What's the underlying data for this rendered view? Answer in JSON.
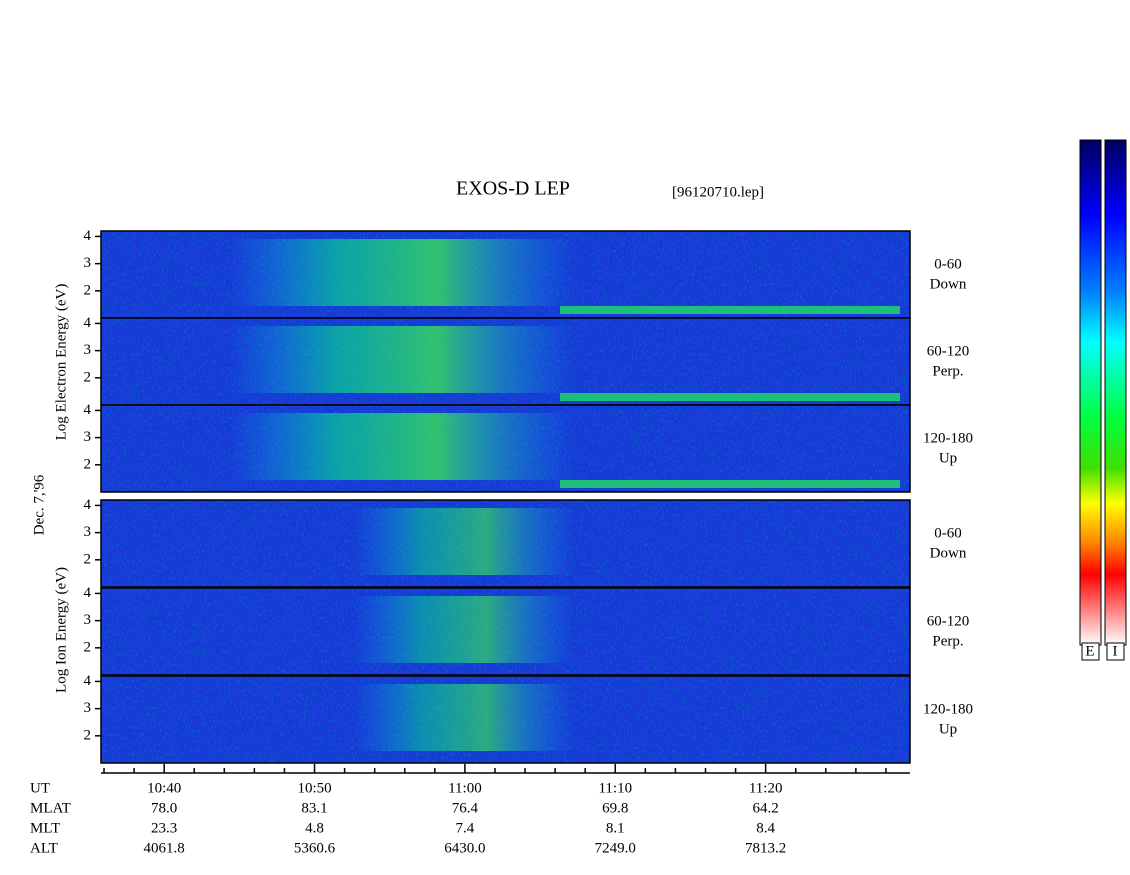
{
  "chart_data": {
    "type": "spectrogram",
    "title": "EXOS-D LEP",
    "file": "[96120710.lep]",
    "date_label": "Dec. 7,'96",
    "electron_ylabel": "Log Electron Energy (eV)",
    "ion_ylabel": "Log Ion Energy (eV)",
    "ylim": [
      1,
      4.2
    ],
    "yticks": [
      2,
      3,
      4
    ],
    "panels": [
      {
        "pitch_angle": "0-60",
        "direction": "Down"
      },
      {
        "pitch_angle": "60-120",
        "direction": "Perp."
      },
      {
        "pitch_angle": "120-180",
        "direction": "Up"
      },
      {
        "pitch_angle": "0-60",
        "direction": "Down"
      },
      {
        "pitch_angle": "60-120",
        "direction": "Perp."
      },
      {
        "pitch_angle": "120-180",
        "direction": "Up"
      }
    ],
    "xlim": [
      35.8,
      89.6
    ],
    "xticks": [
      {
        "value": 40,
        "label": "10:40"
      },
      {
        "value": 50,
        "label": "10:50"
      },
      {
        "value": 60,
        "label": "11:00"
      },
      {
        "value": 70,
        "label": "11:10"
      },
      {
        "value": 80,
        "label": "11:20"
      }
    ],
    "minor_xticks": [
      36,
      38,
      42,
      44,
      46,
      48,
      52,
      54,
      56,
      58,
      62,
      64,
      66,
      68,
      72,
      74,
      76,
      78,
      82,
      84,
      86,
      88
    ],
    "xlabel": "UT",
    "ephemeris": [
      {
        "label": "MLAT",
        "values": [
          "78.0",
          "83.1",
          "76.4",
          "69.8",
          "64.2"
        ]
      },
      {
        "label": "MLT",
        "values": [
          "23.3",
          "4.8",
          "7.4",
          "8.1",
          "8.4"
        ]
      },
      {
        "label": "ALT",
        "values": [
          "4061.8",
          "5360.6",
          "6430.0",
          "7249.0",
          "7813.2"
        ]
      }
    ],
    "colorbar_labels": [
      "E",
      "I"
    ]
  }
}
